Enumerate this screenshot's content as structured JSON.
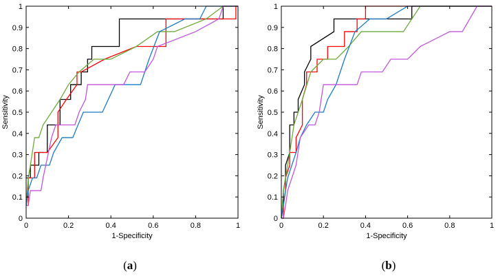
{
  "chart_data": [
    {
      "type": "line",
      "panel": "a",
      "xlabel": "1-Specificity",
      "ylabel": "Sensitivity",
      "xlim": [
        0,
        1
      ],
      "ylim": [
        0,
        1
      ],
      "xticks": [
        "0",
        "0.2",
        "0.4",
        "0.6",
        "0.8",
        "1"
      ],
      "yticks": [
        "0",
        "0.1",
        "0.2",
        "0.3",
        "0.4",
        "0.5",
        "0.6",
        "0.7",
        "0.8",
        "0.9",
        "1"
      ],
      "grid": false,
      "series": [
        {
          "color": "#000000",
          "x": [
            0,
            0.02,
            0.02,
            0.06,
            0.06,
            0.1,
            0.1,
            0.16,
            0.16,
            0.21,
            0.21,
            0.26,
            0.26,
            0.29,
            0.29,
            0.31,
            0.31,
            0.44,
            0.44,
            0.65,
            0.65,
            0.93,
            0.93,
            0.97,
            0.97,
            1
          ],
          "y": [
            0.19,
            0.19,
            0.25,
            0.25,
            0.31,
            0.31,
            0.44,
            0.44,
            0.56,
            0.56,
            0.63,
            0.63,
            0.69,
            0.69,
            0.75,
            0.75,
            0.81,
            0.81,
            0.94,
            0.94,
            0.94,
            0.94,
            1,
            1,
            1,
            1
          ]
        },
        {
          "color": "#ff0000",
          "x": [
            0,
            0.01,
            0.01,
            0.04,
            0.04,
            0.1,
            0.1,
            0.15,
            0.15,
            0.19,
            0.19,
            0.24,
            0.24,
            0.26,
            0.26,
            0.37,
            0.37,
            0.52,
            0.52,
            0.66,
            0.66,
            0.95,
            0.95,
            0.99,
            0.99,
            1
          ],
          "y": [
            0.06,
            0.06,
            0.19,
            0.19,
            0.31,
            0.31,
            0.31,
            0.38,
            0.5,
            0.56,
            0.56,
            0.63,
            0.69,
            0.69,
            0.69,
            0.75,
            0.75,
            0.81,
            0.81,
            0.81,
            0.94,
            0.94,
            0.94,
            0.94,
            1,
            1
          ]
        },
        {
          "color": "#6aaa3a",
          "x": [
            0,
            0.01,
            0.02,
            0.04,
            0.04,
            0.06,
            0.08,
            0.12,
            0.16,
            0.2,
            0.25,
            0.32,
            0.4,
            0.52,
            0.62,
            0.7,
            0.85,
            0.93,
            1
          ],
          "y": [
            0.06,
            0.19,
            0.25,
            0.38,
            0.38,
            0.38,
            0.44,
            0.5,
            0.56,
            0.63,
            0.69,
            0.75,
            0.75,
            0.81,
            0.88,
            0.88,
            0.94,
            1,
            1
          ]
        },
        {
          "color": "#1a7ac7",
          "x": [
            0,
            0.01,
            0.03,
            0.05,
            0.07,
            0.09,
            0.11,
            0.13,
            0.17,
            0.22,
            0.27,
            0.36,
            0.42,
            0.54,
            0.58,
            0.63,
            0.75,
            0.82,
            0.85,
            0.9,
            1
          ],
          "y": [
            0.06,
            0.13,
            0.19,
            0.19,
            0.25,
            0.25,
            0.25,
            0.31,
            0.38,
            0.38,
            0.5,
            0.5,
            0.63,
            0.63,
            0.75,
            0.88,
            0.94,
            0.94,
            1,
            1,
            1
          ]
        },
        {
          "color": "#c054dc",
          "x": [
            0,
            0.01,
            0.02,
            0.03,
            0.05,
            0.07,
            0.08,
            0.12,
            0.14,
            0.23,
            0.25,
            0.28,
            0.29,
            0.4,
            0.46,
            0.49,
            0.56,
            0.6,
            0.62,
            0.8,
            0.91,
            0.93,
            1
          ],
          "y": [
            0.06,
            0.06,
            0.13,
            0.13,
            0.13,
            0.13,
            0.19,
            0.38,
            0.44,
            0.44,
            0.5,
            0.56,
            0.63,
            0.63,
            0.63,
            0.69,
            0.69,
            0.75,
            0.81,
            0.88,
            0.94,
            1,
            1
          ]
        }
      ]
    },
    {
      "type": "line",
      "panel": "b",
      "xlabel": "1-Specificity",
      "ylabel": "Sensitivity",
      "xlim": [
        0,
        1
      ],
      "ylim": [
        0,
        1
      ],
      "xticks": [
        "0",
        "0.2",
        "0.4",
        "0.6",
        "0.8",
        "1"
      ],
      "yticks": [
        "0",
        "0.1",
        "0.2",
        "0.3",
        "0.4",
        "0.5",
        "0.6",
        "0.7",
        "0.8",
        "0.9",
        "1"
      ],
      "grid": false,
      "series": [
        {
          "color": "#000000",
          "x": [
            0,
            0.01,
            0.01,
            0.02,
            0.02,
            0.04,
            0.04,
            0.06,
            0.06,
            0.08,
            0.08,
            0.11,
            0.11,
            0.14,
            0.14,
            0.25,
            0.25,
            0.62,
            0.62,
            1
          ],
          "y": [
            0,
            0.06,
            0.13,
            0.19,
            0.25,
            0.31,
            0.44,
            0.44,
            0.5,
            0.5,
            0.56,
            0.63,
            0.69,
            0.75,
            0.81,
            0.88,
            0.94,
            0.94,
            1,
            1
          ]
        },
        {
          "color": "#ff0000",
          "x": [
            0,
            0.01,
            0.01,
            0.02,
            0.02,
            0.04,
            0.04,
            0.07,
            0.07,
            0.1,
            0.1,
            0.12,
            0.12,
            0.17,
            0.17,
            0.22,
            0.22,
            0.3,
            0.3,
            0.36,
            0.36,
            0.4,
            0.4,
            0.93,
            0.93,
            1
          ],
          "y": [
            0,
            0,
            0.06,
            0.13,
            0.19,
            0.25,
            0.31,
            0.31,
            0.38,
            0.44,
            0.56,
            0.63,
            0.69,
            0.69,
            0.75,
            0.75,
            0.81,
            0.81,
            0.88,
            0.88,
            0.94,
            0.94,
            1,
            1,
            1,
            1
          ]
        },
        {
          "color": "#6aaa3a",
          "x": [
            0,
            0.01,
            0.02,
            0.04,
            0.06,
            0.08,
            0.1,
            0.14,
            0.2,
            0.26,
            0.32,
            0.38,
            0.46,
            0.52,
            0.58,
            0.66,
            1
          ],
          "y": [
            0,
            0.13,
            0.19,
            0.31,
            0.44,
            0.5,
            0.56,
            0.69,
            0.75,
            0.75,
            0.81,
            0.88,
            0.88,
            0.88,
            0.88,
            1,
            1
          ]
        },
        {
          "color": "#1a7ac7",
          "x": [
            0,
            0.01,
            0.02,
            0.03,
            0.05,
            0.07,
            0.09,
            0.12,
            0.16,
            0.2,
            0.22,
            0.26,
            0.3,
            0.35,
            0.42,
            0.5,
            0.6,
            1
          ],
          "y": [
            0,
            0.06,
            0.13,
            0.19,
            0.25,
            0.31,
            0.38,
            0.44,
            0.5,
            0.5,
            0.56,
            0.63,
            0.75,
            0.88,
            0.94,
            0.94,
            1,
            1
          ]
        },
        {
          "color": "#c054dc",
          "x": [
            0,
            0.01,
            0.02,
            0.03,
            0.05,
            0.07,
            0.09,
            0.13,
            0.16,
            0.18,
            0.2,
            0.36,
            0.38,
            0.48,
            0.52,
            0.6,
            0.66,
            0.8,
            0.86,
            0.93,
            1
          ],
          "y": [
            0,
            0,
            0.06,
            0.13,
            0.19,
            0.25,
            0.38,
            0.44,
            0.44,
            0.5,
            0.63,
            0.63,
            0.69,
            0.69,
            0.75,
            0.75,
            0.81,
            0.88,
            0.88,
            1,
            1
          ]
        }
      ]
    }
  ],
  "captions": {
    "a": "(a)",
    "b": "(b)"
  }
}
